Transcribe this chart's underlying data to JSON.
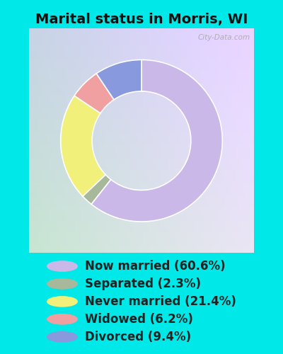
{
  "title": "Marital status in Morris, WI",
  "slices": [
    60.6,
    2.3,
    21.4,
    6.2,
    9.4
  ],
  "labels": [
    "Now married (60.6%)",
    "Separated (2.3%)",
    "Never married (21.4%)",
    "Widowed (6.2%)",
    "Divorced (9.4%)"
  ],
  "colors": [
    "#c9b8e8",
    "#a8b89a",
    "#f0f07a",
    "#f0a0a0",
    "#8899dd"
  ],
  "bg_outer": "#00e8e8",
  "title_fontsize": 14,
  "legend_fontsize": 12,
  "watermark": "City-Data.com",
  "start_angle": 90,
  "donut_width": 0.42
}
